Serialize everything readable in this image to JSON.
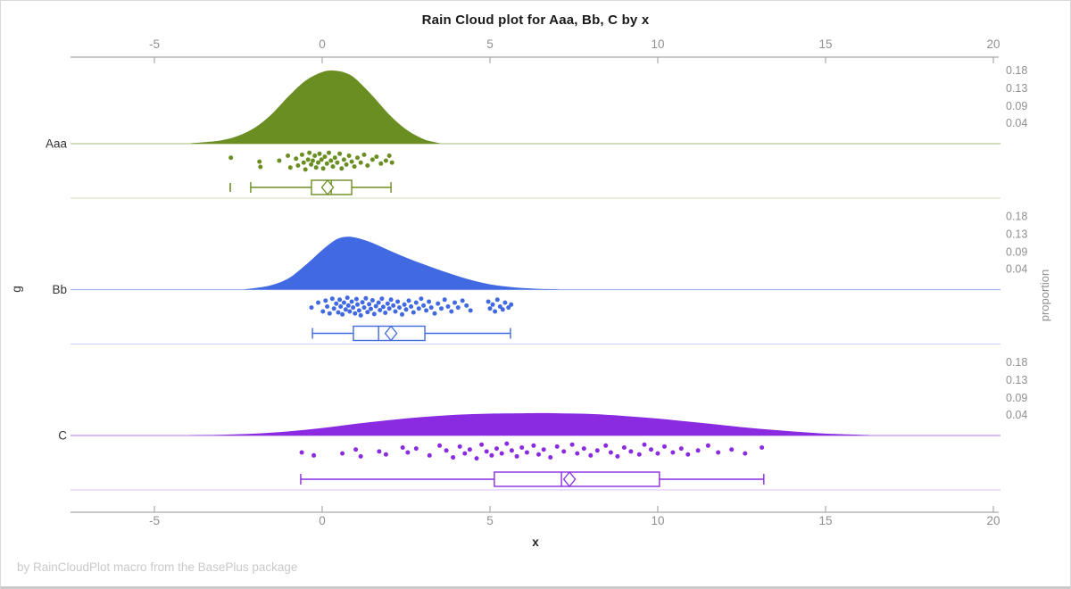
{
  "title": "Rain Cloud plot for Aaa, Bb, C by x",
  "footer": "by RainCloudPlot macro from the BasePlus package",
  "chart_data": {
    "type": "raincloud",
    "title": "Rain Cloud plot for Aaa, Bb, C by x",
    "xlabel": "x",
    "ylabel_left": "g",
    "ylabel_right": "proportion",
    "xlim": [
      -7.5,
      20.2
    ],
    "x_ticks": [
      -5,
      0,
      5,
      10,
      15,
      20
    ],
    "proportion_tick_labels": [
      "0.18",
      "0.13",
      "0.09",
      "0.04"
    ],
    "axis_color": "#a8a8a8",
    "tick_label_color": "#8f8f8f",
    "groups": [
      {
        "label": "Aaa",
        "color": "#6b8e23",
        "density": [
          [
            -3.9,
            0.001
          ],
          [
            -3.5,
            0.004
          ],
          [
            -3.0,
            0.009
          ],
          [
            -2.5,
            0.021
          ],
          [
            -2.0,
            0.043
          ],
          [
            -1.5,
            0.079
          ],
          [
            -1.0,
            0.126
          ],
          [
            -0.5,
            0.167
          ],
          [
            0.0,
            0.19
          ],
          [
            0.35,
            0.194
          ],
          [
            0.7,
            0.188
          ],
          [
            1.0,
            0.172
          ],
          [
            1.5,
            0.127
          ],
          [
            2.0,
            0.077
          ],
          [
            2.5,
            0.038
          ],
          [
            3.0,
            0.013
          ],
          [
            3.3,
            0.005
          ],
          [
            3.5,
            0.001
          ]
        ],
        "box": {
          "outliers": [
            -2.74
          ],
          "whisker_low": -2.13,
          "q1": -0.32,
          "median": 0.27,
          "mean": 0.16,
          "q3": 0.88,
          "whisker_high": 2.05
        },
        "points": [
          [
            -2.72,
            0.35
          ],
          [
            -1.87,
            0.55
          ],
          [
            -1.84,
            0.82
          ],
          [
            -1.28,
            0.5
          ],
          [
            -1.02,
            0.25
          ],
          [
            -0.95,
            0.85
          ],
          [
            -0.78,
            0.4
          ],
          [
            -0.72,
            0.75
          ],
          [
            -0.6,
            0.2
          ],
          [
            -0.55,
            0.6
          ],
          [
            -0.5,
            0.95
          ],
          [
            -0.42,
            0.45
          ],
          [
            -0.38,
            0.1
          ],
          [
            -0.33,
            0.7
          ],
          [
            -0.28,
            0.5
          ],
          [
            -0.22,
            0.25
          ],
          [
            -0.18,
            0.85
          ],
          [
            -0.12,
            0.6
          ],
          [
            -0.08,
            0.15
          ],
          [
            -0.02,
            0.45
          ],
          [
            0.03,
            0.9
          ],
          [
            0.08,
            0.3
          ],
          [
            0.14,
            0.65
          ],
          [
            0.2,
            0.1
          ],
          [
            0.26,
            0.5
          ],
          [
            0.32,
            0.8
          ],
          [
            0.38,
            0.35
          ],
          [
            0.45,
            0.6
          ],
          [
            0.52,
            0.15
          ],
          [
            0.58,
            0.9
          ],
          [
            0.65,
            0.45
          ],
          [
            0.72,
            0.7
          ],
          [
            0.8,
            0.25
          ],
          [
            0.88,
            0.55
          ],
          [
            0.96,
            0.8
          ],
          [
            1.05,
            0.35
          ],
          [
            1.15,
            0.6
          ],
          [
            1.25,
            0.2
          ],
          [
            1.35,
            0.75
          ],
          [
            1.5,
            0.45
          ],
          [
            1.62,
            0.3
          ],
          [
            1.75,
            0.65
          ],
          [
            1.9,
            0.5
          ],
          [
            2.0,
            0.25
          ],
          [
            2.08,
            0.6
          ]
        ]
      },
      {
        "label": "Bb",
        "color": "#4169e1",
        "density": [
          [
            -2.3,
            0.001
          ],
          [
            -2.0,
            0.004
          ],
          [
            -1.5,
            0.012
          ],
          [
            -1.0,
            0.03
          ],
          [
            -0.5,
            0.065
          ],
          [
            0.0,
            0.105
          ],
          [
            0.4,
            0.132
          ],
          [
            0.7,
            0.14
          ],
          [
            1.0,
            0.138
          ],
          [
            1.5,
            0.124
          ],
          [
            2.0,
            0.104
          ],
          [
            2.5,
            0.085
          ],
          [
            3.0,
            0.068
          ],
          [
            3.5,
            0.052
          ],
          [
            4.0,
            0.037
          ],
          [
            4.5,
            0.024
          ],
          [
            5.0,
            0.014
          ],
          [
            5.5,
            0.008
          ],
          [
            6.0,
            0.004
          ],
          [
            6.5,
            0.002
          ],
          [
            7.0,
            0.001
          ]
        ],
        "box": {
          "outliers": [],
          "whisker_low": -0.29,
          "q1": 0.93,
          "median": 1.68,
          "mean": 2.05,
          "q3": 3.06,
          "whisker_high": 5.61
        },
        "points": [
          [
            -0.32,
            0.55
          ],
          [
            -0.12,
            0.3
          ],
          [
            0.02,
            0.75
          ],
          [
            0.1,
            0.2
          ],
          [
            0.15,
            0.5
          ],
          [
            0.22,
            0.85
          ],
          [
            0.3,
            0.1
          ],
          [
            0.35,
            0.6
          ],
          [
            0.42,
            0.35
          ],
          [
            0.48,
            0.8
          ],
          [
            0.52,
            0.15
          ],
          [
            0.55,
            0.5
          ],
          [
            0.6,
            0.9
          ],
          [
            0.65,
            0.3
          ],
          [
            0.7,
            0.65
          ],
          [
            0.75,
            0.05
          ],
          [
            0.78,
            0.45
          ],
          [
            0.82,
            0.75
          ],
          [
            0.88,
            0.25
          ],
          [
            0.92,
            0.55
          ],
          [
            0.98,
            0.85
          ],
          [
            1.02,
            0.12
          ],
          [
            1.05,
            0.4
          ],
          [
            1.1,
            0.7
          ],
          [
            1.15,
            0.95
          ],
          [
            1.2,
            0.28
          ],
          [
            1.25,
            0.55
          ],
          [
            1.3,
            0.08
          ],
          [
            1.35,
            0.78
          ],
          [
            1.4,
            0.38
          ],
          [
            1.45,
            0.62
          ],
          [
            1.5,
            0.18
          ],
          [
            1.55,
            0.88
          ],
          [
            1.6,
            0.48
          ],
          [
            1.68,
            0.3
          ],
          [
            1.72,
            0.68
          ],
          [
            1.78,
            0.1
          ],
          [
            1.82,
            0.52
          ],
          [
            1.88,
            0.82
          ],
          [
            1.95,
            0.35
          ],
          [
            2.0,
            0.6
          ],
          [
            2.05,
            0.15
          ],
          [
            2.12,
            0.45
          ],
          [
            2.18,
            0.75
          ],
          [
            2.25,
            0.25
          ],
          [
            2.3,
            0.55
          ],
          [
            2.38,
            0.9
          ],
          [
            2.45,
            0.4
          ],
          [
            2.5,
            0.65
          ],
          [
            2.58,
            0.2
          ],
          [
            2.65,
            0.5
          ],
          [
            2.72,
            0.8
          ],
          [
            2.8,
            0.3
          ],
          [
            2.88,
            0.6
          ],
          [
            2.95,
            0.1
          ],
          [
            3.02,
            0.45
          ],
          [
            3.1,
            0.7
          ],
          [
            3.18,
            0.25
          ],
          [
            3.25,
            0.55
          ],
          [
            3.35,
            0.85
          ],
          [
            3.45,
            0.35
          ],
          [
            3.55,
            0.6
          ],
          [
            3.65,
            0.15
          ],
          [
            3.75,
            0.5
          ],
          [
            3.85,
            0.75
          ],
          [
            3.95,
            0.3
          ],
          [
            4.05,
            0.55
          ],
          [
            4.18,
            0.2
          ],
          [
            4.3,
            0.45
          ],
          [
            4.42,
            0.7
          ],
          [
            4.95,
            0.25
          ],
          [
            5.0,
            0.6
          ],
          [
            5.08,
            0.4
          ],
          [
            5.15,
            0.75
          ],
          [
            5.22,
            0.15
          ],
          [
            5.3,
            0.5
          ],
          [
            5.38,
            0.65
          ],
          [
            5.45,
            0.3
          ],
          [
            5.55,
            0.55
          ],
          [
            5.63,
            0.4
          ]
        ]
      },
      {
        "label": "C",
        "color": "#8a2be2",
        "density": [
          [
            -3.9,
            0.0006
          ],
          [
            -3.0,
            0.002
          ],
          [
            -2.0,
            0.005
          ],
          [
            -1.0,
            0.011
          ],
          [
            0.0,
            0.02
          ],
          [
            1.0,
            0.031
          ],
          [
            2.0,
            0.041
          ],
          [
            3.0,
            0.049
          ],
          [
            4.0,
            0.055
          ],
          [
            5.0,
            0.058
          ],
          [
            6.0,
            0.059
          ],
          [
            6.5,
            0.0595
          ],
          [
            7.0,
            0.059
          ],
          [
            8.0,
            0.057
          ],
          [
            9.0,
            0.052
          ],
          [
            10.0,
            0.045
          ],
          [
            11.0,
            0.036
          ],
          [
            12.0,
            0.027
          ],
          [
            13.0,
            0.018
          ],
          [
            14.0,
            0.011
          ],
          [
            15.0,
            0.005
          ],
          [
            16.0,
            0.002
          ],
          [
            16.3,
            0.0008
          ]
        ],
        "box": {
          "outliers": [],
          "whisker_low": -0.64,
          "q1": 5.13,
          "median": 7.13,
          "mean": 7.37,
          "q3": 10.05,
          "whisker_high": 13.16
        },
        "points": [
          [
            -0.61,
            0.5
          ],
          [
            -0.25,
            0.65
          ],
          [
            0.6,
            0.55
          ],
          [
            1.0,
            0.35
          ],
          [
            1.15,
            0.7
          ],
          [
            1.7,
            0.45
          ],
          [
            1.9,
            0.6
          ],
          [
            2.4,
            0.25
          ],
          [
            2.55,
            0.5
          ],
          [
            2.8,
            0.3
          ],
          [
            3.2,
            0.65
          ],
          [
            3.5,
            0.15
          ],
          [
            3.7,
            0.4
          ],
          [
            3.9,
            0.75
          ],
          [
            4.1,
            0.2
          ],
          [
            4.25,
            0.55
          ],
          [
            4.4,
            0.35
          ],
          [
            4.6,
            0.8
          ],
          [
            4.75,
            0.1
          ],
          [
            4.9,
            0.45
          ],
          [
            5.05,
            0.65
          ],
          [
            5.2,
            0.3
          ],
          [
            5.35,
            0.55
          ],
          [
            5.5,
            0.05
          ],
          [
            5.65,
            0.4
          ],
          [
            5.8,
            0.7
          ],
          [
            5.95,
            0.25
          ],
          [
            6.1,
            0.5
          ],
          [
            6.3,
            0.15
          ],
          [
            6.45,
            0.6
          ],
          [
            6.6,
            0.35
          ],
          [
            6.8,
            0.75
          ],
          [
            7.0,
            0.2
          ],
          [
            7.2,
            0.45
          ],
          [
            7.45,
            0.1
          ],
          [
            7.6,
            0.55
          ],
          [
            7.8,
            0.3
          ],
          [
            8.0,
            0.65
          ],
          [
            8.2,
            0.4
          ],
          [
            8.45,
            0.15
          ],
          [
            8.6,
            0.5
          ],
          [
            8.8,
            0.7
          ],
          [
            9.0,
            0.25
          ],
          [
            9.2,
            0.45
          ],
          [
            9.45,
            0.6
          ],
          [
            9.6,
            0.1
          ],
          [
            9.8,
            0.35
          ],
          [
            10.0,
            0.55
          ],
          [
            10.2,
            0.2
          ],
          [
            10.45,
            0.5
          ],
          [
            10.7,
            0.3
          ],
          [
            10.9,
            0.6
          ],
          [
            11.2,
            0.4
          ],
          [
            11.5,
            0.15
          ],
          [
            11.8,
            0.5
          ],
          [
            12.2,
            0.35
          ],
          [
            12.6,
            0.55
          ],
          [
            13.1,
            0.25
          ]
        ]
      }
    ]
  }
}
